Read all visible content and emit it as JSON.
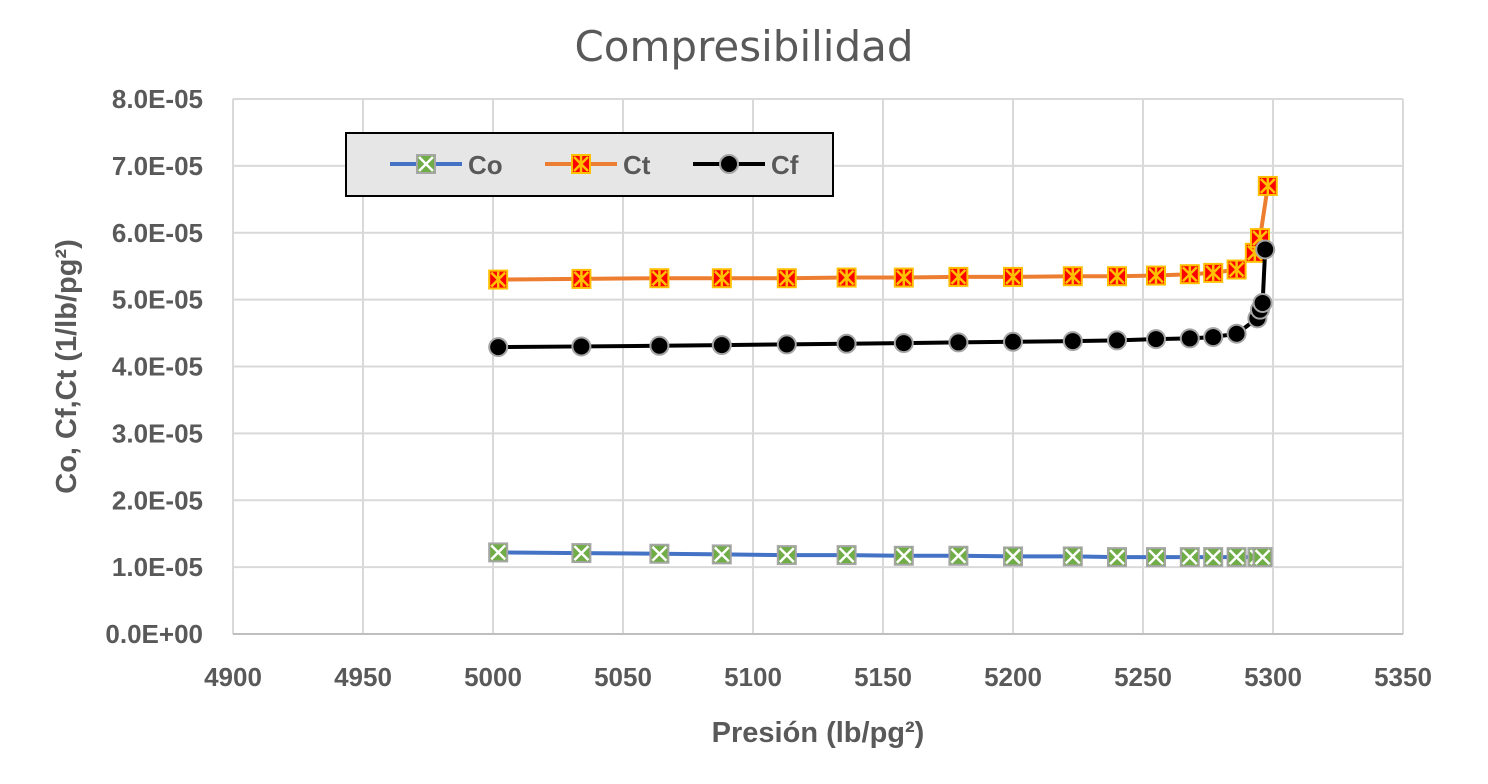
{
  "chart_data": {
    "type": "line",
    "title": "Compresibilidad",
    "xlabel": "Presión (lb/pg²)",
    "ylabel": "Co, Cf,Ct (1/lb/pg²)",
    "xlim": [
      4900,
      5350
    ],
    "ylim": [
      0,
      8e-05
    ],
    "x_ticks": [
      "4900",
      "4950",
      "5000",
      "5050",
      "5100",
      "5150",
      "5200",
      "5250",
      "5300",
      "5350"
    ],
    "y_ticks": [
      "0.0E+00",
      "1.0E-05",
      "2.0E-05",
      "3.0E-05",
      "4.0E-05",
      "5.0E-05",
      "6.0E-05",
      "7.0E-05",
      "8.0E-05"
    ],
    "grid": true,
    "legend_position": "top-left",
    "series": [
      {
        "name": "Co",
        "color": "#4472C4",
        "marker": "square-x",
        "marker_fill": "#70AD47",
        "x": [
          5002,
          5034,
          5064,
          5088,
          5113,
          5136,
          5158,
          5179,
          5200,
          5223,
          5240,
          5255,
          5268,
          5277,
          5286,
          5294,
          5296
        ],
        "y": [
          1.22e-05,
          1.21e-05,
          1.2e-05,
          1.19e-05,
          1.18e-05,
          1.18e-05,
          1.17e-05,
          1.17e-05,
          1.16e-05,
          1.16e-05,
          1.15e-05,
          1.15e-05,
          1.15e-05,
          1.15e-05,
          1.15e-05,
          1.15e-05,
          1.15e-05
        ]
      },
      {
        "name": "Ct",
        "color": "#ED7D31",
        "marker": "square-star",
        "marker_fill": "#FF0000",
        "x": [
          5002,
          5034,
          5064,
          5088,
          5113,
          5136,
          5158,
          5179,
          5200,
          5223,
          5240,
          5255,
          5268,
          5277,
          5286,
          5293,
          5295,
          5298
        ],
        "y": [
          5.3e-05,
          5.31e-05,
          5.32e-05,
          5.32e-05,
          5.32e-05,
          5.33e-05,
          5.33e-05,
          5.34e-05,
          5.34e-05,
          5.35e-05,
          5.35e-05,
          5.36e-05,
          5.38e-05,
          5.4e-05,
          5.45e-05,
          5.7e-05,
          5.92e-05,
          6.7e-05
        ]
      },
      {
        "name": "Cf",
        "color": "#000000",
        "marker": "circle",
        "marker_fill": "#000000",
        "x": [
          5002,
          5034,
          5064,
          5088,
          5113,
          5136,
          5158,
          5179,
          5200,
          5223,
          5240,
          5255,
          5268,
          5277,
          5286,
          5294,
          5295,
          5296,
          5297
        ],
        "y": [
          4.29e-05,
          4.3e-05,
          4.31e-05,
          4.32e-05,
          4.33e-05,
          4.34e-05,
          4.35e-05,
          4.36e-05,
          4.37e-05,
          4.38e-05,
          4.39e-05,
          4.41e-05,
          4.42e-05,
          4.44e-05,
          4.49e-05,
          4.72e-05,
          4.85e-05,
          4.95e-05,
          5.75e-05
        ]
      }
    ]
  }
}
